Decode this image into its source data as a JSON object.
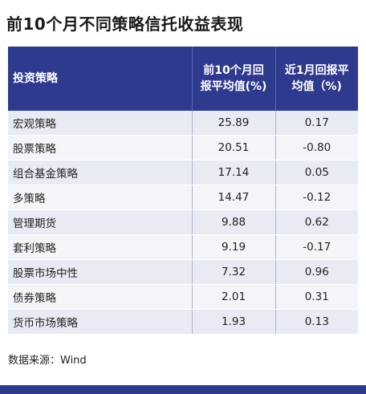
{
  "title": "前10个月不同策略信托收益表现",
  "table": {
    "headers": {
      "strategy": "投资策略",
      "ytd": "前10个月回报平均值(%)",
      "month": "近1月回报平均值（%)"
    },
    "rows": [
      {
        "name": "宏观策略",
        "ytd": "25.89",
        "month": "0.17"
      },
      {
        "name": "股票策略",
        "ytd": "20.51",
        "month": "-0.80"
      },
      {
        "name": "组合基金策略",
        "ytd": "17.14",
        "month": "0.05"
      },
      {
        "name": "多策略",
        "ytd": "14.47",
        "month": "-0.12"
      },
      {
        "name": "管理期货",
        "ytd": "9.88",
        "month": "0.62"
      },
      {
        "name": "套利策略",
        "ytd": "9.19",
        "month": "-0.17"
      },
      {
        "name": "股票市场中性",
        "ytd": "7.32",
        "month": "0.96"
      },
      {
        "name": "债券策略",
        "ytd": "2.01",
        "month": "0.31"
      },
      {
        "name": "货币市场策略",
        "ytd": "1.93",
        "month": "0.13"
      }
    ]
  },
  "source": "数据来源：Wind",
  "colors": {
    "header_bg": "#2e3a8e",
    "row_odd": "#e8ebf3",
    "row_even": "#f3f5f9"
  }
}
